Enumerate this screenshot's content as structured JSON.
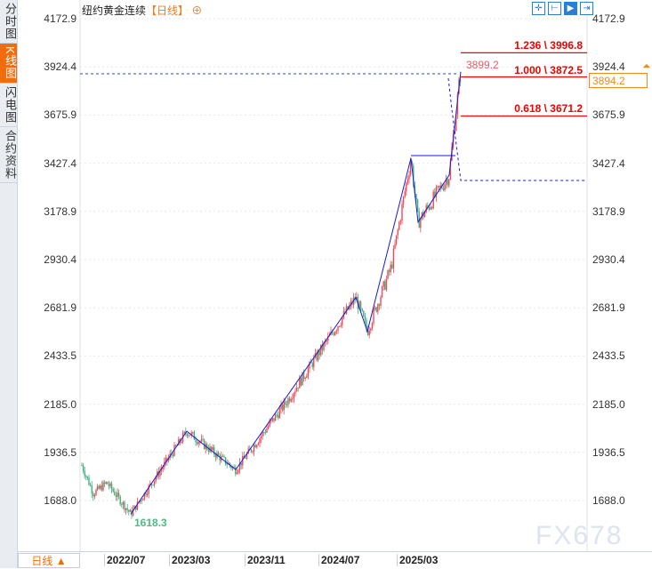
{
  "sidebar": {
    "tabs": [
      "分时图",
      "K线图",
      "闪电图",
      "合约资料"
    ],
    "active": 1
  },
  "header": {
    "title": "纽约黄金连续",
    "period_tag": "【日线】",
    "add_icon": "⊕"
  },
  "toolbar": {
    "icons": [
      "crosshair-icon",
      "range-icon",
      "cursor-icon",
      "go-latest-icon"
    ]
  },
  "price_axis": {
    "labels": [
      "4172.9",
      "3924.4",
      "3675.9",
      "3427.4",
      "3178.9",
      "2930.4",
      "2681.9",
      "2433.5",
      "2185.0",
      "1936.5",
      "1688.0"
    ]
  },
  "current_price": "3894.2",
  "high_label": "3899.2",
  "low_label": "1618.3",
  "fib_levels": [
    {
      "label": "1.236 \\ 3996.8",
      "price": 3996.8
    },
    {
      "label": "1.000 \\ 3872.5",
      "price": 3872.5
    },
    {
      "label": "0.618 \\ 3671.2",
      "price": 3671.2
    }
  ],
  "x_axis": {
    "labels": [
      "2022/07",
      "2023/03",
      "2023/11",
      "2024/07",
      "2025/03"
    ]
  },
  "period_button": "日线 ▲",
  "watermark": "FX678",
  "colors": {
    "up": "#ee4b57",
    "down": "#3fb07a",
    "accent": "#f36c0c",
    "wave": "#1a1ad8",
    "fib": "#ff0000"
  },
  "chart_data": {
    "type": "candlestick",
    "ylim": [
      1688.0,
      4172.9
    ],
    "wave_points": [
      1870,
      1724,
      1780,
      1618.3,
      2045,
      1847,
      2183,
      2390,
      2735,
      2560,
      2895,
      3454,
      3124,
      3367,
      3672,
      3899.2
    ],
    "zigzag": [
      1618.3,
      2045,
      1847,
      2735,
      2560,
      3454,
      3124,
      3367,
      3899.2
    ]
  }
}
